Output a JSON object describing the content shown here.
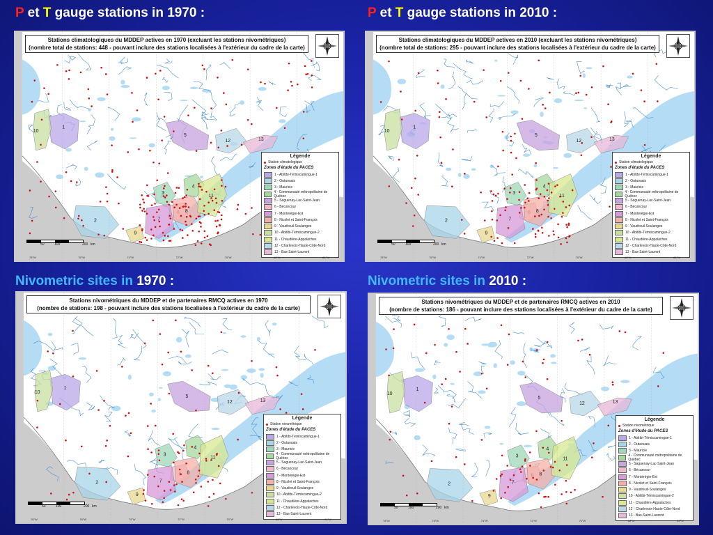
{
  "headings": {
    "top_left": {
      "p": "P",
      "et": " et ",
      "t": "T",
      "rest": " gauge stations in 1970 :"
    },
    "top_right": {
      "p": "P",
      "et": " et ",
      "t": "T",
      "rest": " gauge stations in 2010 :"
    },
    "bottom_left": {
      "label": "Nivometric sites in",
      "year": " 1970 :"
    },
    "bottom_right": {
      "label": "Nivometric sites in",
      "year": " 2010 :"
    }
  },
  "maps": [
    {
      "id": "p1970",
      "title_line1": "Stations climatologiques du MDDEP actives en 1970 (excluant les stations nivométriques)",
      "title_line2": "(nombre total de stations: 448 - pouvant inclure des stations localisées à l'extérieur du cadre de la carte)",
      "station_label": "Station climatologique",
      "station_count": 448
    },
    {
      "id": "p2010",
      "title_line1": "Stations climatologiques du MDDEP actives en 2010 (excluant les stations nivométriques)",
      "title_line2": "(nombre total de stations: 295 - pouvant inclure des stations localisées à l'extérieur du cadre de la carte)",
      "station_label": "Station climatologique",
      "station_count": 295
    },
    {
      "id": "n1970",
      "title_line1": "Stations nivométriques du MDDEP et de partenaires RMCQ actives en 1970",
      "title_line2": "(nombre de stations: 198 - pouvant inclure des stations localisées à l'extérieur du cadre de la carte)",
      "station_label": "Station nivométrique",
      "station_count": 198
    },
    {
      "id": "n2010",
      "title_line1": "Stations nivométriques du MDDEP et de partenaires RMCQ actives en 2010",
      "title_line2": "(nombre de stations: 186 - pouvant inclure des stations localisées à l'extérieur du cadre de la carte)",
      "station_label": "Station nivométrique",
      "station_count": 186
    }
  ],
  "legend": {
    "title": "Légende",
    "zones_title": "Zones d'étude du PACES",
    "zones": [
      {
        "num": "1",
        "label": "1 - Abitibi-Témiscamingue-1",
        "color": "#b9a8e8"
      },
      {
        "num": "2",
        "label": "2 - Outaouais",
        "color": "#a8d4e8"
      },
      {
        "num": "3",
        "label": "3 - Mauricie",
        "color": "#9fd8b8"
      },
      {
        "num": "4",
        "label": "4 - Communauté métropolitaine de Québec",
        "color": "#a6d89c"
      },
      {
        "num": "5",
        "label": "5 - Saguenay-Lac-Saint-Jean",
        "color": "#c7a3e0"
      },
      {
        "num": "6",
        "label": "6 - Bécancour",
        "color": "#f0b8c8"
      },
      {
        "num": "7",
        "label": "7 - Montérégie-Est",
        "color": "#d59ad8"
      },
      {
        "num": "8",
        "label": "8 - Nicolet et Saint-François",
        "color": "#f4b0a8"
      },
      {
        "num": "9",
        "label": "9 - Vaudreuil-Soulanges",
        "color": "#e8d890"
      },
      {
        "num": "10",
        "label": "10 - Abitibi-Témiscamingue-2",
        "color": "#c8e0a0"
      },
      {
        "num": "11",
        "label": "11 - Chaudière-Appalaches",
        "color": "#d8e890"
      },
      {
        "num": "12",
        "label": "12 - Charlevoix-Haute-Côte-Nord",
        "color": "#b8d8e8"
      },
      {
        "num": "13",
        "label": "13 - Bas-Saint-Laurent",
        "color": "#e8b8d8"
      }
    ]
  },
  "scale": {
    "ticks": [
      "50",
      "100",
      "200"
    ],
    "unit": "km"
  },
  "coords": [
    "78°W",
    "76°W",
    "74°W",
    "72°W",
    "70°W",
    "68°W",
    "66°W"
  ],
  "colors": {
    "land": "#ffffff",
    "water": "#b4dcf5",
    "river": "#4a90d0",
    "station": "#d01010",
    "outside": "#cccccc"
  }
}
